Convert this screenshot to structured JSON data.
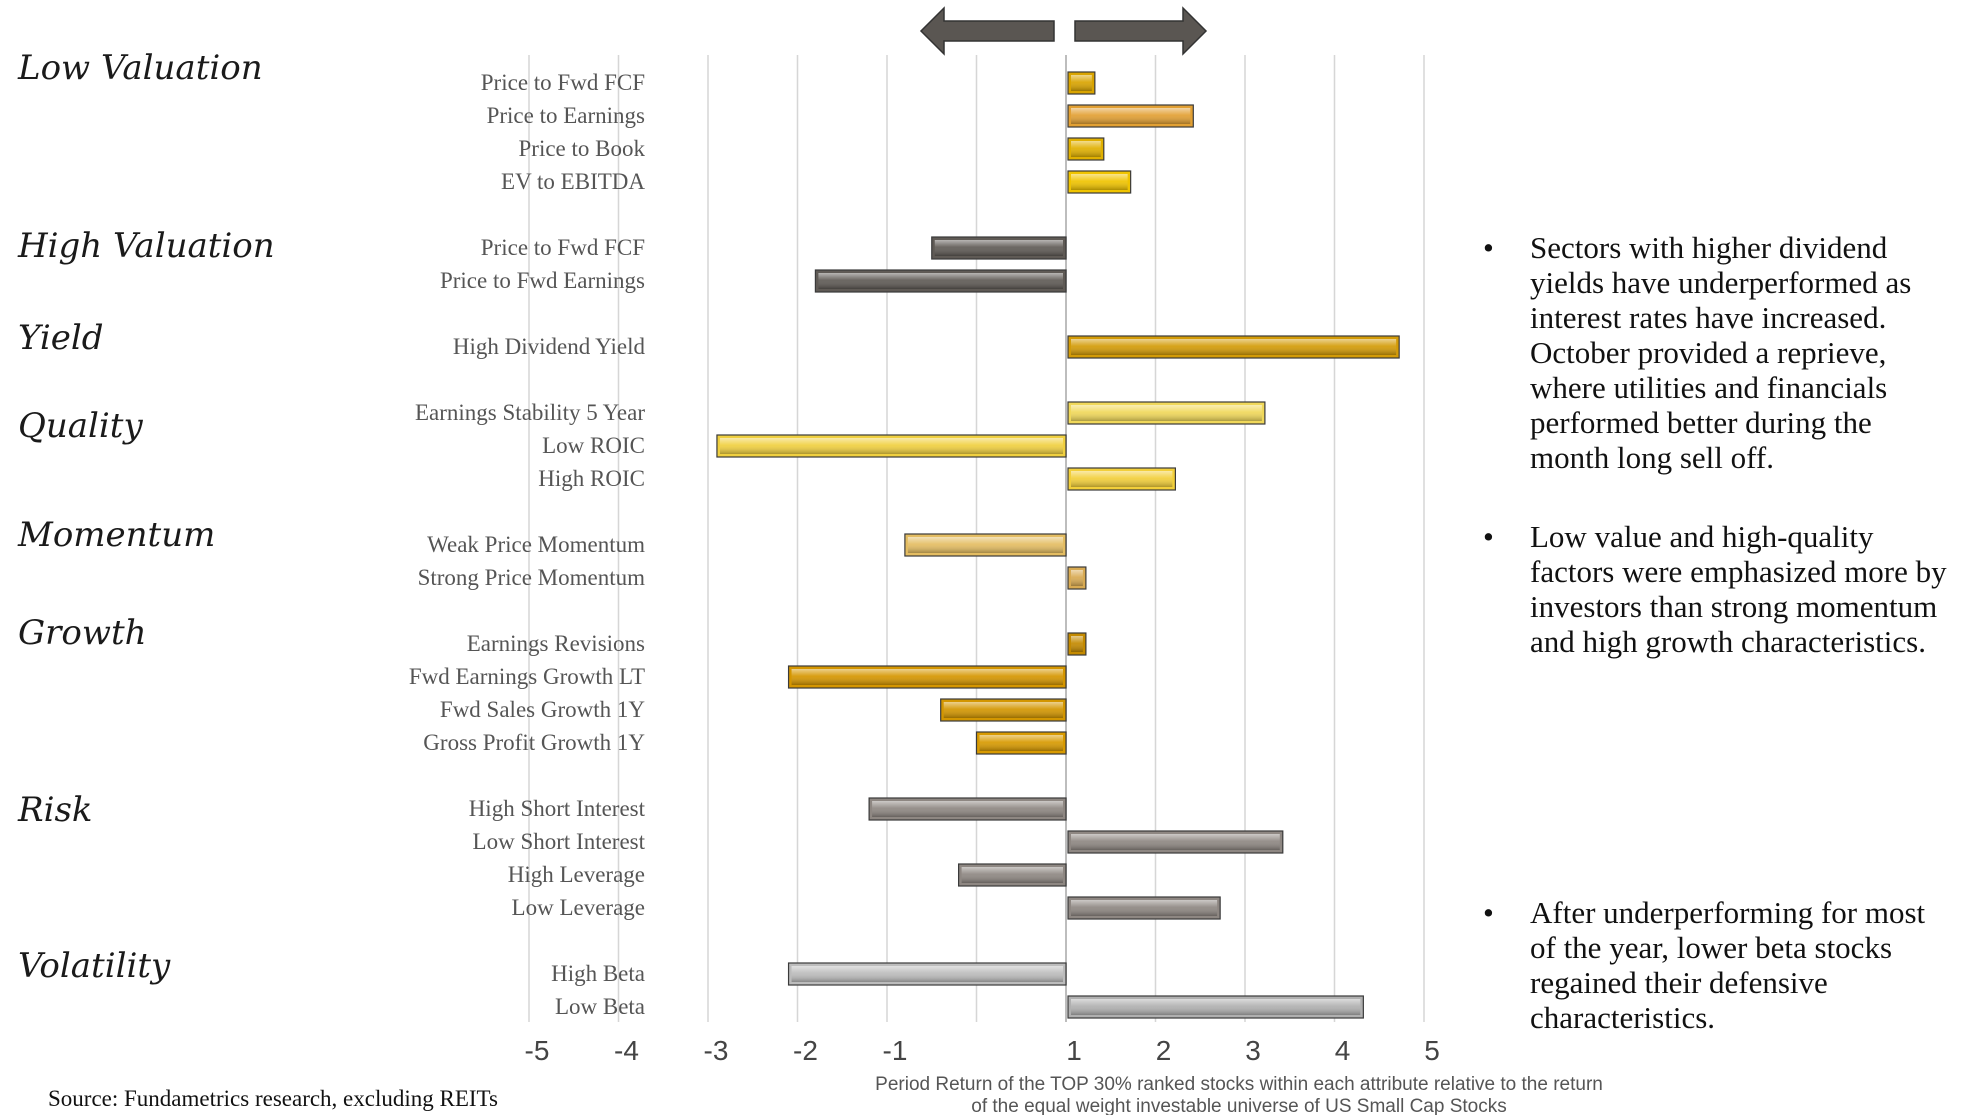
{
  "chart_data": {
    "type": "bar",
    "orientation": "horizontal",
    "xlim": [
      -5,
      5
    ],
    "x_ticks": [
      "-5",
      "-4",
      "-3",
      "-2",
      "-1",
      "1",
      "2",
      "3",
      "4",
      "5"
    ],
    "xlabel_lines": [
      "Period Return of the TOP 30% ranked stocks within each attribute relative to the return",
      "of the equal weight investable universe of US Small Cap Stocks"
    ],
    "grid": "vertical",
    "groups": [
      {
        "name": "Low Valuation",
        "items": [
          {
            "label": "Price to Fwd FCF",
            "value": 0.3,
            "color": "#d9a400"
          },
          {
            "label": "Price to Earnings",
            "value": 1.4,
            "color": "#e2a033"
          },
          {
            "label": "Price to Book",
            "value": 0.4,
            "color": "#e0b000"
          },
          {
            "label": "EV to EBITDA",
            "value": 0.7,
            "color": "#f0c400"
          }
        ]
      },
      {
        "name": "High Valuation",
        "items": [
          {
            "label": "Price to Fwd FCF",
            "value": -1.5,
            "color": "#5f5a55"
          },
          {
            "label": "Price to Fwd Earnings",
            "value": -2.8,
            "color": "#5f5a55"
          }
        ]
      },
      {
        "name": "Yield",
        "items": [
          {
            "label": "High Dividend Yield",
            "value": 3.7,
            "color": "#d39b07"
          }
        ]
      },
      {
        "name": "Quality",
        "items": [
          {
            "label": "Earnings Stability 5 Year",
            "value": 2.2,
            "color": "#f0d85a"
          },
          {
            "label": "Low ROIC",
            "value": -3.9,
            "color": "#f0d040"
          },
          {
            "label": "High ROIC",
            "value": 1.2,
            "color": "#f2cf3a"
          }
        ]
      },
      {
        "name": "Momentum",
        "items": [
          {
            "label": "Weak Price Momentum",
            "value": -1.8,
            "color": "#e4bd62"
          },
          {
            "label": "Strong Price Momentum",
            "value": 0.2,
            "color": "#d8aa52"
          }
        ]
      },
      {
        "name": "Growth",
        "items": [
          {
            "label": "Earnings Revisions",
            "value": 0.2,
            "color": "#c48a00"
          },
          {
            "label": "Fwd Earnings Growth LT",
            "value": -3.1,
            "color": "#d59600"
          },
          {
            "label": "Fwd Sales Growth 1Y",
            "value": -1.4,
            "color": "#d39600"
          },
          {
            "label": "Gross Profit Growth 1Y",
            "value": -1.0,
            "color": "#d89a00"
          }
        ]
      },
      {
        "name": "Risk",
        "items": [
          {
            "label": "High Short Interest",
            "value": -2.2,
            "color": "#8e8782"
          },
          {
            "label": "Low Short Interest",
            "value": 2.4,
            "color": "#8e8782"
          },
          {
            "label": "High Leverage",
            "value": -1.2,
            "color": "#8e8782"
          },
          {
            "label": "Low Leverage",
            "value": 1.7,
            "color": "#8e8782"
          }
        ]
      },
      {
        "name": "Volatility",
        "items": [
          {
            "label": "High Beta",
            "value": -3.1,
            "color": "#bcbcbc"
          },
          {
            "label": "Low Beta",
            "value": 3.3,
            "color": "#b0b0b0"
          }
        ]
      }
    ]
  },
  "notes": [
    "Sectors with higher dividend yields have underperformed as interest rates have increased. October provided a reprieve, where utilities and financials performed better during the month long sell off.",
    "Low value and high-quality factors were emphasized more by investors than strong momentum and high growth characteristics.",
    "After underperforming for most of the year, lower beta stocks regained their defensive characteristics."
  ],
  "note_bullet": "•",
  "source": "Source:  Fundametrics research, excluding REITs"
}
